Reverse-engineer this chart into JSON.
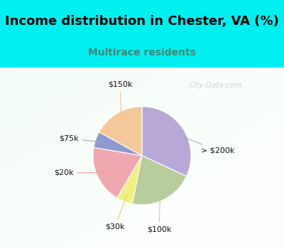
{
  "title": "Income distribution in Chester, VA (%)",
  "subtitle": "Multirace residents",
  "watermark": "City-Data.com",
  "labels": [
    "> $200k",
    "$100k",
    "$30k",
    "$20k",
    "$75k",
    "$150k"
  ],
  "sizes": [
    30,
    20,
    5,
    18,
    5,
    16
  ],
  "colors": [
    "#b8a8d8",
    "#b8cc9c",
    "#f0f080",
    "#f0a8b0",
    "#9098d0",
    "#f5c89a"
  ],
  "startangle": 90,
  "bg_cyan": "#00f0f0",
  "subtitle_color": "#3a8a7a",
  "watermark_color": "#b8c8d0",
  "title_fontsize": 13,
  "subtitle_fontsize": 10,
  "label_fontsize": 8,
  "label_line_colors": [
    "#b0a8c8",
    "#c8c8b0",
    "#d8d870",
    "#f0a0a0",
    "#a0a8d0",
    "#f0c0a0"
  ]
}
